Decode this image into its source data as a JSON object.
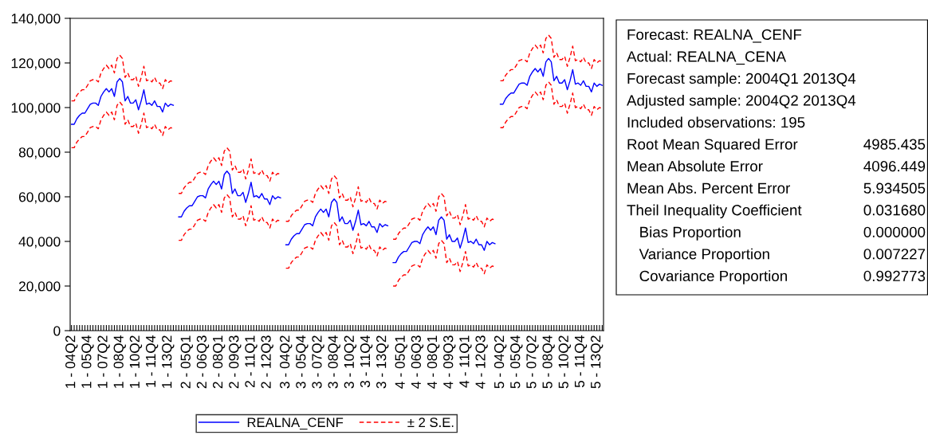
{
  "chart_data": {
    "type": "line",
    "categories": [
      "1 - 04Q2",
      null,
      null,
      null,
      null,
      null,
      "1 - 05Q4",
      null,
      null,
      null,
      null,
      null,
      "1 - 07Q2",
      null,
      null,
      null,
      null,
      null,
      "1 - 08Q4",
      null,
      null,
      null,
      null,
      null,
      "1 - 10Q2",
      null,
      null,
      null,
      null,
      null,
      "1 - 11Q4",
      null,
      null,
      null,
      null,
      null,
      "1 - 13Q2",
      null,
      null,
      null,
      null,
      null,
      null,
      "2 - 05Q1",
      null,
      null,
      null,
      null,
      null,
      "2 - 06Q3",
      null,
      null,
      null,
      null,
      null,
      "2 - 08Q1",
      null,
      null,
      null,
      null,
      null,
      "2 - 09Q3",
      null,
      null,
      null,
      null,
      null,
      "2 - 11Q1",
      null,
      null,
      null,
      null,
      null,
      "2 - 12Q3",
      null,
      null,
      null,
      null,
      null,
      null,
      "3 - 04Q2",
      null,
      null,
      null,
      null,
      null,
      "3 - 05Q4",
      null,
      null,
      null,
      null,
      null,
      "3 - 07Q2",
      null,
      null,
      null,
      null,
      null,
      "3 - 08Q4",
      null,
      null,
      null,
      null,
      null,
      "3 - 10Q2",
      null,
      null,
      null,
      null,
      null,
      "3 - 11Q4",
      null,
      null,
      null,
      null,
      null,
      "3 - 13Q2",
      null,
      null,
      null,
      null,
      null,
      null,
      "4 - 05Q1",
      null,
      null,
      null,
      null,
      null,
      "4 - 06Q3",
      null,
      null,
      null,
      null,
      null,
      "4 - 08Q1",
      null,
      null,
      null,
      null,
      null,
      "4 - 09Q3",
      null,
      null,
      null,
      null,
      null,
      "4 - 11Q1",
      null,
      null,
      null,
      null,
      null,
      "4 - 12Q3",
      null,
      null,
      null,
      null,
      null,
      null,
      "5 - 04Q2",
      null,
      null,
      null,
      null,
      null,
      "5 - 05Q4",
      null,
      null,
      null,
      null,
      null,
      "5 - 07Q2",
      null,
      null,
      null,
      null,
      null,
      "5 - 08Q4",
      null,
      null,
      null,
      null,
      null,
      "5 - 10Q2",
      null,
      null,
      null,
      null,
      null,
      "5 - 11Q4",
      null,
      null,
      null,
      null,
      null,
      "5 - 13Q2",
      null,
      null
    ],
    "series": [
      {
        "name": "REALNA_CENF",
        "color": "#0000ff",
        "line_style": "solid",
        "values": [
          92500,
          92500,
          95000,
          96500,
          97500,
          97500,
          99500,
          101500,
          102000,
          102000,
          101000,
          105000,
          107000,
          108500,
          107000,
          108500,
          105000,
          111500,
          113000,
          111500,
          103000,
          105000,
          102000,
          102000,
          103500,
          99000,
          103000,
          108000,
          101500,
          102000,
          101000,
          103000,
          100500,
          100500,
          98000,
          102000,
          100500,
          101500,
          101000,
          null,
          51000,
          51000,
          53500,
          55000,
          56000,
          56000,
          58000,
          60000,
          60500,
          60500,
          59500,
          63500,
          65500,
          67000,
          65500,
          67000,
          63500,
          70000,
          71500,
          70000,
          61500,
          63500,
          60500,
          60500,
          62000,
          57500,
          61500,
          66500,
          60000,
          60500,
          59500,
          61500,
          59000,
          59000,
          56500,
          60500,
          59000,
          60000,
          59500,
          null,
          38500,
          38500,
          41000,
          42500,
          43500,
          43500,
          45500,
          47500,
          48000,
          48000,
          47000,
          51000,
          53000,
          54500,
          53000,
          54500,
          51000,
          57500,
          59000,
          57500,
          49000,
          51000,
          48000,
          48000,
          49500,
          45000,
          49000,
          54000,
          47500,
          48000,
          47000,
          49000,
          46500,
          46500,
          44000,
          48000,
          46500,
          47500,
          47000,
          null,
          30500,
          30500,
          33000,
          34500,
          35500,
          35500,
          37500,
          39500,
          40000,
          40000,
          39000,
          43000,
          45000,
          46500,
          45000,
          46500,
          43000,
          49500,
          51000,
          49500,
          41000,
          43000,
          40000,
          40000,
          41500,
          37000,
          41000,
          46000,
          39500,
          40000,
          39000,
          41000,
          38500,
          38500,
          36000,
          40000,
          38500,
          39500,
          39000,
          null,
          101500,
          101500,
          104000,
          105500,
          106500,
          106500,
          108500,
          110500,
          111000,
          111000,
          110000,
          114000,
          116000,
          117500,
          116000,
          117500,
          114000,
          120500,
          122000,
          120500,
          112000,
          114000,
          111000,
          111000,
          112500,
          108000,
          112000,
          117000,
          110500,
          111000,
          110000,
          112000,
          109500,
          109500,
          107000,
          111000,
          109500,
          110500,
          110000
        ]
      },
      {
        "name": "± 2 S.E.",
        "color": "#ff0000",
        "line_style": "dashed",
        "values": [
          103000,
          103000,
          105500,
          107000,
          108000,
          108000,
          110000,
          112000,
          112500,
          112500,
          111500,
          115500,
          117500,
          119000,
          117500,
          119000,
          115500,
          122000,
          123500,
          122000,
          113500,
          115500,
          112500,
          112500,
          114000,
          109500,
          113500,
          118500,
          112000,
          112500,
          111500,
          113500,
          111000,
          111000,
          108500,
          112500,
          111000,
          112000,
          111500,
          null,
          61500,
          61500,
          64000,
          65500,
          66500,
          66500,
          68500,
          70500,
          71000,
          71000,
          70000,
          74000,
          76000,
          77500,
          76000,
          77500,
          74000,
          80500,
          82000,
          80500,
          72000,
          74000,
          71000,
          71000,
          72500,
          68000,
          72000,
          77000,
          70500,
          71000,
          70000,
          72000,
          69500,
          69500,
          67000,
          71000,
          69500,
          70500,
          70000,
          null,
          49000,
          49000,
          51500,
          53000,
          54000,
          54000,
          56000,
          58000,
          58500,
          58500,
          57500,
          61500,
          63500,
          65000,
          63500,
          65000,
          61500,
          68000,
          69500,
          68000,
          59500,
          61500,
          58500,
          58500,
          60000,
          55500,
          59500,
          64500,
          58000,
          58500,
          57500,
          59500,
          57000,
          57000,
          54500,
          58500,
          57000,
          58000,
          57500,
          null,
          41000,
          41000,
          43500,
          45000,
          46000,
          46000,
          48000,
          50000,
          50500,
          50500,
          49500,
          53500,
          55500,
          57000,
          55500,
          57000,
          53500,
          60000,
          61500,
          60000,
          51500,
          53500,
          50500,
          50500,
          52000,
          47500,
          51500,
          56500,
          50000,
          50500,
          49500,
          51500,
          49000,
          49000,
          46500,
          50500,
          49000,
          50000,
          49500,
          null,
          112000,
          112000,
          114500,
          116000,
          117000,
          117000,
          119000,
          121000,
          121500,
          121500,
          120500,
          124500,
          126500,
          128000,
          126500,
          128000,
          124500,
          131000,
          132500,
          131000,
          122500,
          124500,
          121500,
          121500,
          123000,
          118500,
          122500,
          127500,
          121000,
          121500,
          120500,
          122500,
          120000,
          120000,
          117500,
          121500,
          120000,
          121000,
          120500
        ]
      },
      {
        "color": "#ff0000",
        "line_style": "dashed",
        "values": [
          82000,
          82000,
          84500,
          86000,
          87000,
          87000,
          89000,
          91000,
          91500,
          91500,
          90500,
          94500,
          96500,
          98000,
          96500,
          98000,
          94500,
          101000,
          102500,
          101000,
          92500,
          94500,
          91500,
          91500,
          93000,
          88500,
          92500,
          97500,
          91000,
          91500,
          90500,
          92500,
          90000,
          90000,
          87500,
          91500,
          90000,
          91000,
          90500,
          null,
          40500,
          40500,
          43000,
          44500,
          45500,
          45500,
          47500,
          49500,
          50000,
          50000,
          49000,
          53000,
          55000,
          56500,
          55000,
          56500,
          53000,
          59500,
          61000,
          59500,
          51000,
          53000,
          50000,
          50000,
          51500,
          47000,
          51000,
          56000,
          49500,
          50000,
          49000,
          51000,
          48500,
          48500,
          46000,
          50000,
          48500,
          49500,
          49000,
          null,
          28000,
          28000,
          30500,
          32000,
          33000,
          33000,
          35000,
          37000,
          37500,
          37500,
          36500,
          40500,
          42500,
          44000,
          42500,
          44000,
          40500,
          47000,
          48500,
          47000,
          38500,
          40500,
          37500,
          37500,
          39000,
          34500,
          38500,
          43500,
          37000,
          37500,
          36500,
          38500,
          36000,
          36000,
          33500,
          37500,
          36000,
          37000,
          36500,
          null,
          20000,
          20000,
          22500,
          24000,
          25000,
          25000,
          27000,
          29000,
          29500,
          29500,
          28500,
          32500,
          34500,
          36000,
          34500,
          36000,
          32500,
          39000,
          40500,
          39000,
          30500,
          32500,
          29500,
          29500,
          31000,
          26500,
          30500,
          35500,
          29000,
          29500,
          28500,
          30500,
          28000,
          28000,
          25500,
          29500,
          28000,
          29000,
          28500,
          null,
          91000,
          91000,
          93500,
          95000,
          96000,
          96000,
          98000,
          100000,
          100500,
          100500,
          99500,
          103500,
          105500,
          107000,
          105500,
          107000,
          103500,
          110000,
          111500,
          110000,
          101500,
          103500,
          100500,
          100500,
          102000,
          97500,
          101500,
          106500,
          100000,
          100500,
          99500,
          101500,
          99000,
          99000,
          96500,
          100500,
          99000,
          100000,
          99500
        ]
      }
    ],
    "ylim": [
      0,
      140000
    ],
    "yticks": [
      0,
      {
        "value": 20000,
        "label": "20,000"
      },
      {
        "value": 40000,
        "label": "40,000"
      },
      {
        "value": 60000,
        "label": "60,000"
      },
      {
        "value": 80000,
        "label": "80,000"
      },
      {
        "value": 100000,
        "label": "100,000"
      },
      {
        "value": 120000,
        "label": "120,000"
      },
      {
        "value": 140000,
        "label": "140,000"
      }
    ],
    "legend": "bottom",
    "annotations": [
      "Forecast: REALNA_CENF",
      "Actual: REALNA_CENA",
      "Forecast sample: 2004Q1 2013Q4",
      "Adjusted sample: 2004Q2 2013Q4",
      "Included observations: 195",
      "Root Mean Squared Error",
      "4985.435",
      "Mean Absolute Error",
      "4096.449",
      "Mean Abs. Percent Error",
      "5.934505",
      "Theil Inequality Coefficient",
      "0.031680",
      "   Bias Proportion",
      "0.000000",
      "   Variance Proportion",
      "0.007227",
      "   Covariance Proportion",
      "0.992773"
    ]
  }
}
